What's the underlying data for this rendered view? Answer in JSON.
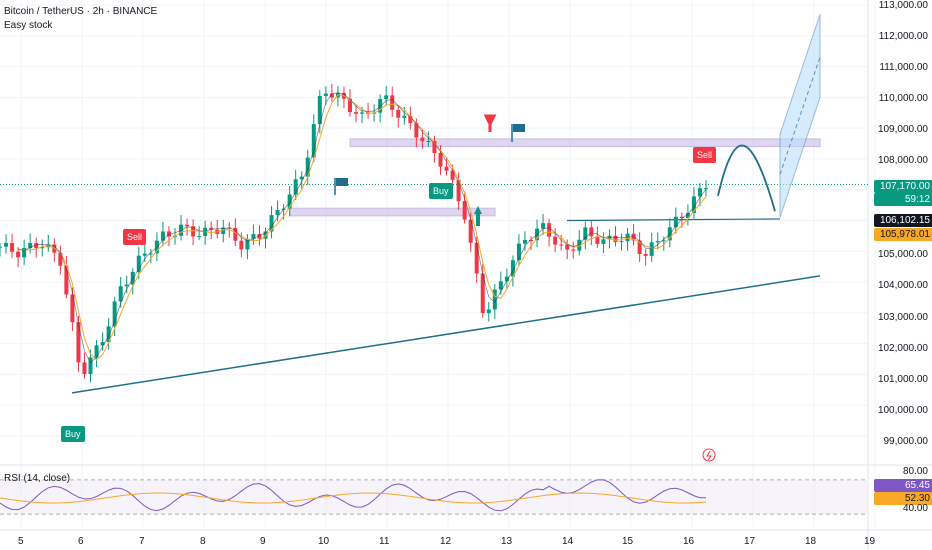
{
  "header": {
    "title": "Bitcoin / TetherUS · 2h · BINANCE",
    "subtitle": "Easy stock"
  },
  "rsi": {
    "label": "RSI (14, close)",
    "value": "65.45",
    "ma_value": "52.30",
    "levels": [
      "80.00",
      "40.00"
    ]
  },
  "price_scale": [
    "113,000.00",
    "112,000.00",
    "111,000.00",
    "110,000.00",
    "109,000.00",
    "108,000.00",
    "105,000.00",
    "104,000.00",
    "103,000.00",
    "102,000.00",
    "101,000.00",
    "100,000.00",
    "99,000.00"
  ],
  "price_tags": {
    "last": "107,170.00",
    "countdown": "59:12",
    "level1": "106,102.15",
    "level2": "105,978.01"
  },
  "x_axis": [
    "5",
    "6",
    "7",
    "8",
    "9",
    "10",
    "11",
    "12",
    "13",
    "14",
    "15",
    "16",
    "17",
    "18",
    "19"
  ],
  "signals": [
    {
      "label": "Sell",
      "kind": "sell"
    },
    {
      "label": "Buy",
      "kind": "buy"
    },
    {
      "label": "Sell",
      "kind": "sell"
    },
    {
      "label": "Buy",
      "kind": "buy"
    }
  ],
  "colors": {
    "up": "#089981",
    "down": "#f23645",
    "sell": "#f23645",
    "buy": "#089981",
    "zone": "#d1c4e9",
    "trend": "#1f6f8b",
    "rsi": "#7e57c2",
    "last_tag": "#089981",
    "level_tag": "#131722",
    "ma_tag": "#f9a825"
  },
  "chart_data": {
    "type": "candlestick",
    "title": "Bitcoin / TetherUS · 2h · BINANCE",
    "x": [
      "5",
      "6",
      "7",
      "8",
      "9",
      "10",
      "11",
      "12",
      "13",
      "14",
      "15",
      "16"
    ],
    "y_range": [
      98500,
      113000
    ],
    "close_path": [
      105150,
      104950,
      105300,
      104700,
      101000,
      102000,
      103800,
      104800,
      105450,
      105750,
      105550,
      105800,
      105200,
      105600,
      106500,
      107500,
      110300,
      109900,
      109300,
      110000,
      109300,
      108600,
      107800,
      106300,
      102900,
      104200,
      105400,
      105800,
      104900,
      105600,
      105300,
      105500,
      104900,
      105600,
      106300,
      107200
    ],
    "annotation": "projected move toward 113,000"
  }
}
